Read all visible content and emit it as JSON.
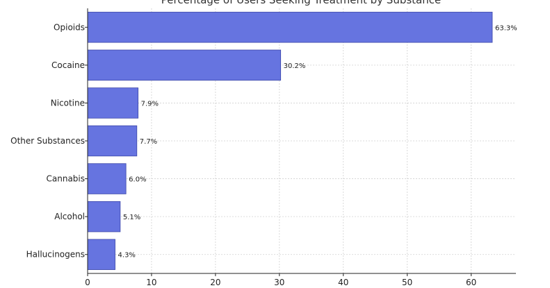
{
  "chart_data": {
    "type": "bar",
    "orientation": "horizontal",
    "title": "Percentage of Users Seeking Treatment by Substance",
    "xlabel": "",
    "ylabel": "",
    "categories": [
      "Opioids",
      "Cocaine",
      "Nicotine",
      "Other Substances",
      "Cannabis",
      "Alcohol",
      "Hallucinogens"
    ],
    "values": [
      63.3,
      30.2,
      7.9,
      7.7,
      6.0,
      5.1,
      4.3
    ],
    "data_labels": [
      "63.3%",
      "30.2%",
      "7.9%",
      "7.7%",
      "6.0%",
      "5.1%",
      "4.3%"
    ],
    "xlim": [
      0,
      67
    ],
    "xticks": [
      0,
      10,
      20,
      30,
      40,
      50,
      60
    ],
    "grid": true,
    "bar_color": "#6674e0",
    "bar_edge_color": "#3b46a8"
  }
}
